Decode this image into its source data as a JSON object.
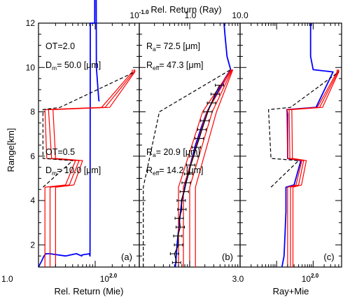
{
  "chart_data": {
    "type": "line",
    "ylabel": "Range[km]",
    "ylim": [
      1,
      12
    ],
    "yticks": [
      "2",
      "4",
      "6",
      "8",
      "10",
      "12"
    ],
    "top_axis_title": "Rel. Return (Ray)",
    "top_ticks": [
      {
        "base": "10",
        "exp": "-1.0"
      },
      {
        "base": "1.0",
        "exp": ""
      },
      {
        "base": "10.0",
        "exp": ""
      }
    ],
    "panels": [
      {
        "letter": "(a)",
        "xlabel": "Rel. Return (Mie)",
        "xscale": "log",
        "xlim": [
          1,
          60
        ],
        "bottom_ticks": [
          {
            "base": "1.0",
            "exp": ""
          },
          {
            "base": "10",
            "exp": "2.0"
          }
        ],
        "annotations": [
          {
            "parts": [
              "OT=2.0"
            ]
          },
          {
            "parts": [
              "D",
              "m",
              "= 50.0 [",
              "μ",
              "m]"
            ]
          },
          {
            "parts": [
              "OT=0.5"
            ]
          },
          {
            "parts": [
              "D",
              "m",
              "= 10.0 [",
              "μ",
              "m]"
            ]
          }
        ],
        "series": [
          {
            "color": "#0000ff",
            "style": "solid",
            "range": [
              1.0,
              1.3,
              1.5,
              1.6,
              1.6,
              1.5,
              1.6,
              1.6,
              1.5,
              1.55,
              1.6,
              1.5,
              12,
              12,
              35,
              10,
              8.5,
              8.5
            ],
            "x": [
              1.0,
              1.15,
              1.25,
              1.35,
              1.6,
              3.0,
              4.6,
              4.7,
              5.8,
              5.9,
              7.9,
              8.1,
              8.2,
              9.8,
              9.9,
              10.5,
              11.6,
              12
            ]
          },
          {
            "color": "#ff0000",
            "style": "solid",
            "range": [
              1.0,
              4.6,
              4.7,
              5.8,
              5.9,
              8.1,
              8.2,
              9.8,
              9.9
            ],
            "x": [
              1.3,
              1.3,
              3.0,
              4.5,
              1.4,
              1.3,
              13,
              45,
              45
            ]
          },
          {
            "color": "#ff0000",
            "style": "solid",
            "range": [
              1.0,
              4.6,
              4.7,
              5.8,
              5.9,
              8.1,
              8.2,
              9.8,
              9.9
            ],
            "x": [
              1.6,
              1.6,
              3.5,
              5.2,
              1.7,
              1.5,
              15,
              48,
              48
            ]
          },
          {
            "color": "#ff0000",
            "style": "solid",
            "range": [
              1.0,
              4.6,
              4.7,
              5.8,
              5.9,
              8.1,
              8.2,
              9.8,
              9.9
            ],
            "x": [
              2.0,
              2.0,
              4.2,
              6.0,
              2.0,
              1.8,
              18,
              50,
              50
            ]
          },
          {
            "color": "#000000",
            "style": "dashed",
            "range": [
              4.6,
              5.8,
              5.9,
              8.1,
              8.2,
              9.8
            ],
            "x": [
              1.2,
              4.0,
              1.2,
              1.2,
              2.4,
              50
            ]
          }
        ]
      },
      {
        "letter": "(b)",
        "xlabel": "",
        "xscale": "log",
        "xlim": [
          0.1,
          10
        ],
        "bottom_ticks": [],
        "annotations": [
          {
            "parts": [
              "R",
              "a",
              "= 72.5 [",
              "μ",
              "m]"
            ]
          },
          {
            "parts": [
              "R",
              "eff",
              "= 47.3 [",
              "μ",
              "m]"
            ]
          },
          {
            "parts": [
              "R",
              "a",
              "= 20.9 [",
              "μ",
              "m]"
            ]
          },
          {
            "parts": [
              "R",
              "eff",
              "= 14.2 [",
              "μ",
              "m]"
            ]
          }
        ],
        "series": [
          {
            "color": "#0000ff",
            "style": "solid",
            "range": [
              1.0,
              2.0,
              3.0,
              4.0,
              4.6,
              5.5,
              6.5,
              7.3,
              8.0,
              8.5,
              9.0,
              9.5,
              9.9,
              10.5,
              11.5,
              12
            ],
            "x": [
              0.52,
              0.56,
              0.62,
              0.7,
              0.8,
              1.0,
              1.3,
              1.7,
              2.2,
              2.9,
              3.8,
              5.0,
              6.5,
              5.5,
              5.0,
              4.8
            ]
          },
          {
            "color": "#ff0000",
            "style": "solid",
            "range": [
              1.0,
              4.6,
              8.0,
              9.9
            ],
            "x": [
              0.6,
              0.6,
              1.8,
              6.6
            ]
          },
          {
            "color": "#ff0000",
            "style": "solid",
            "range": [
              1.0,
              4.6,
              8.0,
              9.9
            ],
            "x": [
              0.75,
              0.75,
              2.2,
              6.8
            ]
          },
          {
            "color": "#ff0000",
            "style": "solid",
            "range": [
              1.0,
              4.6,
              8.0,
              9.9
            ],
            "x": [
              1.0,
              1.0,
              2.8,
              7.0
            ]
          },
          {
            "color": "#ff0000",
            "style": "solid",
            "range": [
              1.0,
              4.6,
              8.0,
              9.9
            ],
            "x": [
              1.3,
              1.3,
              3.4,
              7.2
            ]
          },
          {
            "color": "#000000",
            "style": "dashed",
            "range": [
              1.0,
              4.6,
              8.0,
              9.9
            ],
            "x": [
              0.12,
              0.12,
              0.25,
              6.5
            ]
          },
          {
            "color": "#000000",
            "style": "solid",
            "errorbars": true,
            "range": [
              1.2,
              1.6,
              2.0,
              2.4,
              2.8,
              3.2,
              3.6,
              4.0,
              4.4,
              4.8,
              5.2,
              5.6,
              6.0,
              6.4,
              6.8,
              7.2,
              7.6,
              8.0,
              8.4,
              8.8,
              9.2
            ],
            "x": [
              0.55,
              0.5,
              0.6,
              0.58,
              0.65,
              0.62,
              0.7,
              0.68,
              0.78,
              0.85,
              0.95,
              1.05,
              1.2,
              1.35,
              1.55,
              1.75,
              2.0,
              2.3,
              2.7,
              3.2,
              3.9
            ]
          }
        ]
      },
      {
        "letter": "(c)",
        "xlabel": "Ray+Mie",
        "xscale": "log",
        "xlim": [
          0.1,
          60
        ],
        "bottom_ticks": [
          {
            "base": "3.0",
            "exp": ""
          },
          {
            "base": "10",
            "exp": "2.0"
          }
        ],
        "annotations": [],
        "series": [
          {
            "color": "#0000ff",
            "style": "solid",
            "range": [
              1.0,
              1.5,
              2.5,
              3.5,
              4.6,
              4.7,
              5.8,
              5.9,
              7.9,
              8.1,
              8.2,
              9.8,
              9.9,
              10.5,
              11.6,
              12
            ],
            "x": [
              1.4,
              1.6,
              1.7,
              1.8,
              1.8,
              3.0,
              4.6,
              2.0,
              2.0,
              1.9,
              12,
              35,
              10,
              8.5,
              8.5,
              8.5
            ]
          },
          {
            "color": "#ff0000",
            "style": "solid",
            "range": [
              1.0,
              4.6,
              4.7,
              5.8,
              5.9,
              8.1,
              8.2,
              9.8,
              9.9
            ],
            "x": [
              2.0,
              2.0,
              3.4,
              4.9,
              2.0,
              1.9,
              13,
              45,
              45
            ]
          },
          {
            "color": "#ff0000",
            "style": "solid",
            "range": [
              1.0,
              4.6,
              4.7,
              5.8,
              5.9,
              8.1,
              8.2,
              9.8,
              9.9
            ],
            "x": [
              2.4,
              2.4,
              4.0,
              5.5,
              2.3,
              2.2,
              15,
              48,
              48
            ]
          },
          {
            "color": "#ff0000",
            "style": "solid",
            "range": [
              1.0,
              4.6,
              4.7,
              5.8,
              5.9,
              8.1,
              8.2,
              9.8,
              9.9
            ],
            "x": [
              2.8,
              2.8,
              4.8,
              6.5,
              2.7,
              2.6,
              18,
              50,
              50
            ]
          },
          {
            "color": "#000000",
            "style": "dashed",
            "range": [
              4.6,
              5.8,
              5.9,
              8.1,
              8.2,
              9.8
            ],
            "x": [
              0.7,
              4.0,
              0.7,
              0.6,
              2.4,
              50
            ]
          }
        ]
      }
    ]
  }
}
